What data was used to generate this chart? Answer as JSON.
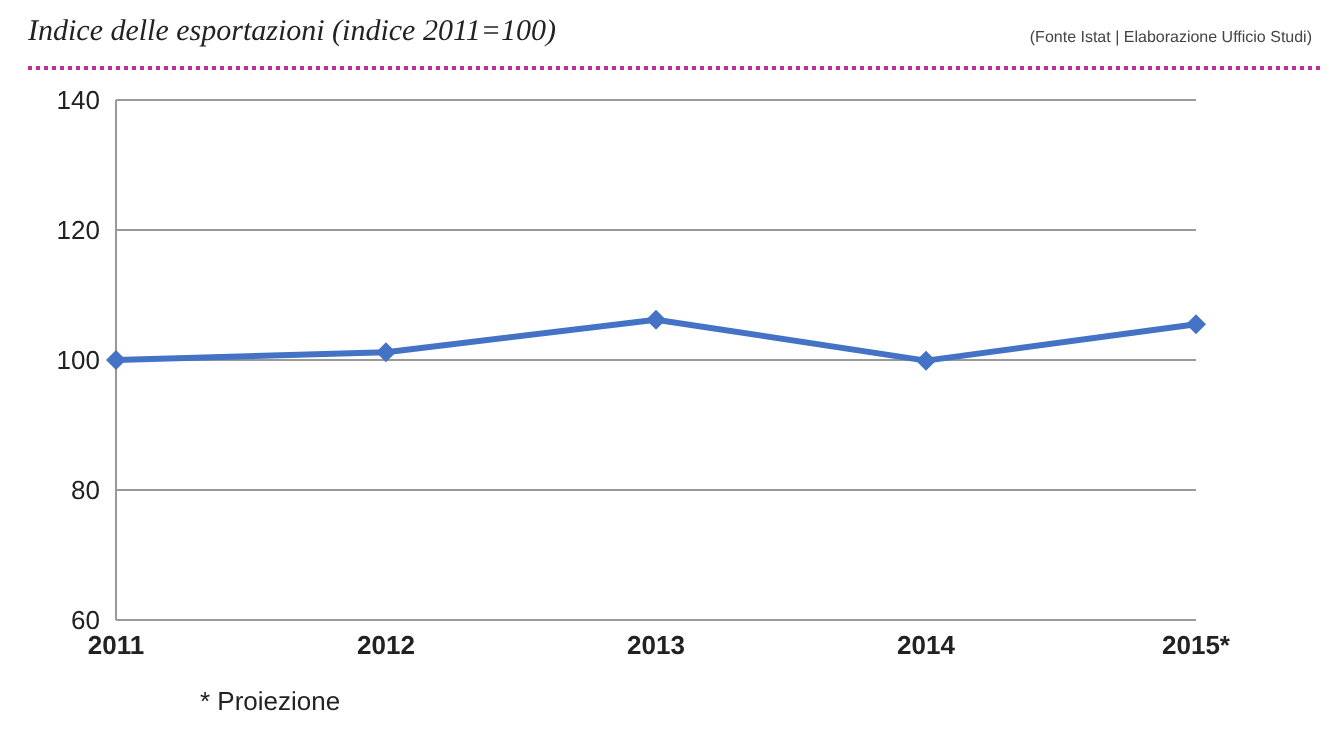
{
  "chart_data": {
    "type": "line",
    "title": "Indice delle esportazioni (indice 2011=100)",
    "categories": [
      "2011",
      "2012",
      "2013",
      "2014",
      "2015*"
    ],
    "series": [
      {
        "color": "#4472c4",
        "values": [
          100,
          101.2,
          106.2,
          99.9,
          105.5
        ]
      }
    ],
    "ylim": [
      60,
      140
    ],
    "yticks": [
      60,
      80,
      100,
      120,
      140
    ],
    "grid": "y",
    "marker": "diamond",
    "legend": false,
    "annotations": [
      "(Fonte Istat | Elaborazione Ufficio Studi)",
      "* Proiezione"
    ]
  }
}
